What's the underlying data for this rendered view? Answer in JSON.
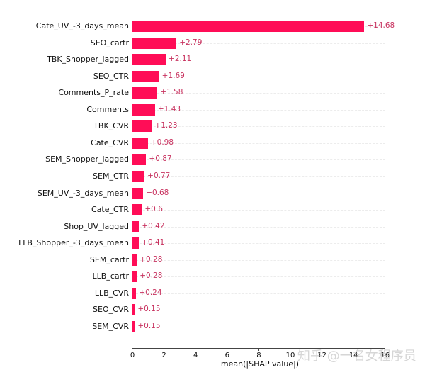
{
  "chart_data": {
    "type": "bar",
    "orientation": "horizontal",
    "title": "",
    "xlabel": "mean(|SHAP value|)",
    "ylabel": "",
    "xlim": [
      0,
      16
    ],
    "x_ticks": [
      0,
      2,
      4,
      6,
      8,
      10,
      12,
      14,
      16
    ],
    "grid": "horizontal dashed row guides",
    "legend": null,
    "bar_color": "#ff0d57",
    "value_label_color": "#c8325f",
    "categories": [
      "Cate_UV_-3_days_mean",
      "SEO_cartr",
      "TBK_Shopper_lagged",
      "SEO_CTR",
      "Comments_P_rate",
      "Comments",
      "TBK_CVR",
      "Cate_CVR",
      "SEM_Shopper_lagged",
      "SEM_CTR",
      "SEM_UV_-3_days_mean",
      "Cate_CTR",
      "Shop_UV_lagged",
      "LLB_Shopper_-3_days_mean",
      "SEM_cartr",
      "LLB_cartr",
      "LLB_CVR",
      "SEO_CVR",
      "SEM_CVR"
    ],
    "values": [
      14.68,
      2.79,
      2.11,
      1.69,
      1.58,
      1.43,
      1.23,
      0.98,
      0.87,
      0.77,
      0.68,
      0.6,
      0.42,
      0.41,
      0.28,
      0.28,
      0.24,
      0.15,
      0.15
    ],
    "value_labels": [
      "+14.68",
      "+2.79",
      "+2.11",
      "+1.69",
      "+1.58",
      "+1.43",
      "+1.23",
      "+0.98",
      "+0.87",
      "+0.77",
      "+0.68",
      "+0.6",
      "+0.42",
      "+0.41",
      "+0.28",
      "+0.28",
      "+0.24",
      "+0.15",
      "+0.15"
    ]
  },
  "watermark": "知乎 @一名女程序员"
}
